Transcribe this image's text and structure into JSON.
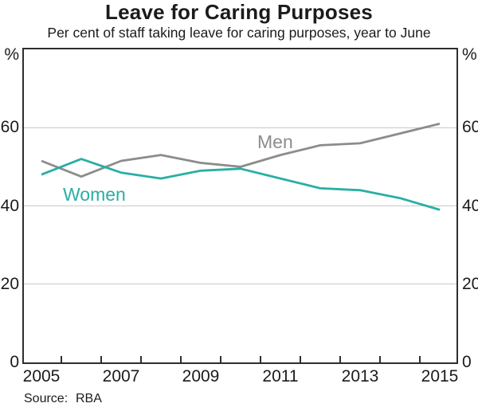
{
  "header": {
    "title": "Leave for Caring Purposes",
    "subtitle": "Per cent of staff taking leave for caring purposes, year to June"
  },
  "axes": {
    "y_unit_left": "%",
    "y_unit_right": "%",
    "y_tick_labels": [
      "0",
      "20",
      "40",
      "60"
    ],
    "x_tick_labels": [
      "2005",
      "2007",
      "2009",
      "2011",
      "2013",
      "2015"
    ]
  },
  "series_labels": {
    "men": "Men",
    "women": "Women"
  },
  "source": {
    "label": "Source:",
    "value": "RBA"
  },
  "colors": {
    "men_line": "#8c8c8c",
    "women_line": "#29afa4",
    "gridline": "#c9c9c9",
    "axis_frame": "#2e2e2e"
  },
  "chart_data": {
    "type": "line",
    "title": "Leave for Caring Purposes",
    "subtitle": "Per cent of staff taking leave for caring purposes, year to June",
    "x": [
      2005,
      2006,
      2007,
      2008,
      2009,
      2010,
      2011,
      2012,
      2013,
      2014,
      2015
    ],
    "series": [
      {
        "name": "Men",
        "color": "#8c8c8c",
        "values": [
          51.5,
          47.5,
          51.5,
          53,
          51,
          50,
          53,
          55.5,
          56,
          58.5,
          61
        ]
      },
      {
        "name": "Women",
        "color": "#29afa4",
        "values": [
          48,
          52,
          48.5,
          47,
          49,
          49.5,
          47,
          44.5,
          44,
          42,
          39
        ]
      }
    ],
    "ylabel": "%",
    "xlabel": "",
    "ylim": [
      0,
      80
    ],
    "yticks": [
      0,
      20,
      40,
      60
    ],
    "xticks_labeled": [
      2005,
      2007,
      2009,
      2011,
      2013,
      2015
    ],
    "grid": "horizontal",
    "legend_position": "inline-labels",
    "source": "RBA"
  }
}
